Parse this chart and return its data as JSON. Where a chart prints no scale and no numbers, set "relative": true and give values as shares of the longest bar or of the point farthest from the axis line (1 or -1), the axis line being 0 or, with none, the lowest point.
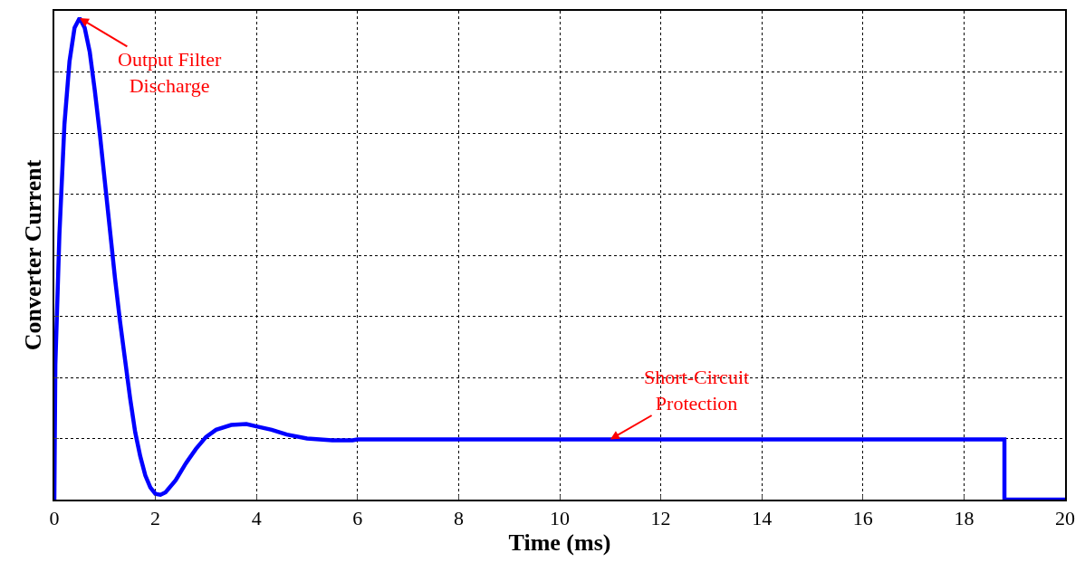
{
  "chart_data": {
    "type": "line",
    "relative": true,
    "xlabel": "Time (ms)",
    "ylabel": "Converter Current",
    "xlim": [
      0,
      20
    ],
    "xticks": [
      0,
      2,
      4,
      6,
      8,
      10,
      12,
      14,
      16,
      18,
      20
    ],
    "grid": true,
    "line_style": "solid",
    "series": [
      {
        "color": "#0000ff",
        "x": [
          0,
          0.02,
          0.1,
          0.2,
          0.3,
          0.4,
          0.5,
          0.6,
          0.7,
          0.8,
          0.9,
          1.0,
          1.1,
          1.2,
          1.3,
          1.4,
          1.5,
          1.6,
          1.7,
          1.8,
          1.9,
          2.0,
          2.1,
          2.2,
          2.4,
          2.6,
          2.8,
          3.0,
          3.2,
          3.5,
          3.8,
          4.0,
          4.3,
          4.6,
          5.0,
          5.5,
          5.9,
          6.0,
          18.8,
          18.8,
          20
        ],
        "values": [
          0,
          0.28,
          0.55,
          0.78,
          0.91,
          0.98,
          1.0,
          0.98,
          0.93,
          0.85,
          0.76,
          0.66,
          0.56,
          0.46,
          0.37,
          0.29,
          0.21,
          0.14,
          0.09,
          0.05,
          0.025,
          0.012,
          0.01,
          0.015,
          0.04,
          0.075,
          0.105,
          0.13,
          0.145,
          0.155,
          0.157,
          0.152,
          0.145,
          0.135,
          0.127,
          0.123,
          0.123,
          0.125,
          0.125,
          0,
          0
        ]
      }
    ],
    "annotations": [
      {
        "text": "Output Filter\nDischarge",
        "x": 0.5,
        "y": 1.0
      },
      {
        "text": "Short-Circuit\nProtection",
        "x": 11,
        "y": 0.125
      }
    ]
  }
}
